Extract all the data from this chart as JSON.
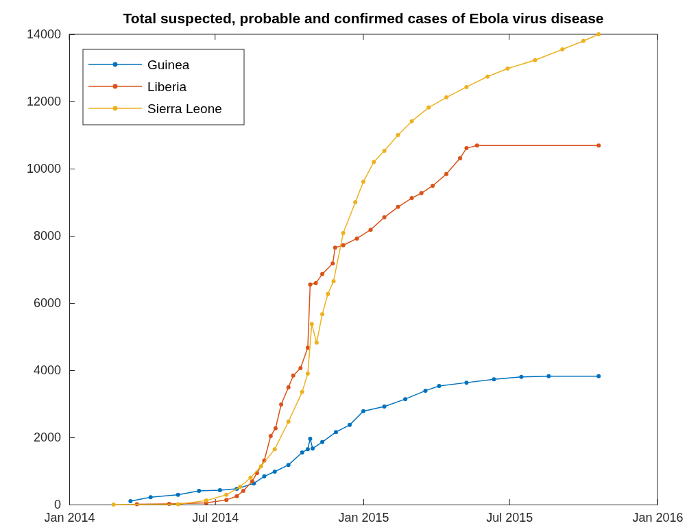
{
  "chart_data": {
    "type": "line",
    "title": "Total suspected, probable and confirmed cases of Ebola virus disease",
    "xlim": [
      "2014-01-01",
      "2016-01-01"
    ],
    "xticks": [
      {
        "value": "2014-01-01",
        "label": "Jan 2014"
      },
      {
        "value": "2014-07-01",
        "label": "Jul 2014"
      },
      {
        "value": "2015-01-01",
        "label": "Jan 2015"
      },
      {
        "value": "2015-07-01",
        "label": "Jul 2015"
      },
      {
        "value": "2016-01-01",
        "label": "Jan 2016"
      }
    ],
    "ylim": [
      0,
      14000
    ],
    "yticks": [
      0,
      2000,
      4000,
      6000,
      8000,
      10000,
      12000,
      14000
    ],
    "grid": false,
    "legend": "top left",
    "marker": "circle",
    "line_style": "solid",
    "series": [
      {
        "name": "Guinea",
        "color": "#0072bd",
        "x": [
          "2014-03-18",
          "2014-04-12",
          "2014-05-16",
          "2014-06-11",
          "2014-07-07",
          "2014-07-28",
          "2014-08-18",
          "2014-08-31",
          "2014-09-13",
          "2014-09-30",
          "2014-10-17",
          "2014-10-24",
          "2014-10-27",
          "2014-10-30",
          "2014-11-11",
          "2014-11-28",
          "2014-12-15",
          "2015-01-01",
          "2015-01-27",
          "2015-02-22",
          "2015-03-19",
          "2015-04-05",
          "2015-05-09",
          "2015-06-12",
          "2015-07-16",
          "2015-08-19",
          "2015-10-20"
        ],
        "values": [
          100,
          220,
          290,
          410,
          430,
          470,
          630,
          840,
          980,
          1180,
          1550,
          1650,
          1960,
          1670,
          1860,
          2160,
          2370,
          2780,
          2920,
          3140,
          3390,
          3530,
          3630,
          3730,
          3800,
          3820,
          3820
        ]
      },
      {
        "name": "Liberia",
        "color": "#d95319",
        "x": [
          "2014-03-26",
          "2014-05-05",
          "2014-06-20",
          "2014-07-15",
          "2014-07-28",
          "2014-08-05",
          "2014-08-16",
          "2014-08-22",
          "2014-08-31",
          "2014-09-08",
          "2014-09-14",
          "2014-09-21",
          "2014-09-30",
          "2014-10-06",
          "2014-10-15",
          "2014-10-24",
          "2014-10-27",
          "2014-11-03",
          "2014-11-11",
          "2014-11-24",
          "2014-11-27",
          "2014-12-07",
          "2014-12-24",
          "2015-01-10",
          "2015-01-27",
          "2015-02-13",
          "2015-03-02",
          "2015-03-14",
          "2015-03-28",
          "2015-04-14",
          "2015-05-01",
          "2015-05-09",
          "2015-05-22",
          "2015-10-20"
        ],
        "values": [
          10,
          20,
          50,
          140,
          250,
          410,
          690,
          940,
          1310,
          2040,
          2270,
          2980,
          3490,
          3840,
          4060,
          4670,
          6550,
          6590,
          6860,
          7180,
          7650,
          7720,
          7920,
          8180,
          8550,
          8860,
          9120,
          9270,
          9490,
          9840,
          10310,
          10610,
          10690,
          10690
        ]
      },
      {
        "name": "Sierra Leone",
        "color": "#edb120",
        "x": [
          "2014-02-25",
          "2014-05-16",
          "2014-06-20",
          "2014-07-15",
          "2014-08-01",
          "2014-08-14",
          "2014-08-27",
          "2014-09-13",
          "2014-09-30",
          "2014-10-17",
          "2014-10-24",
          "2014-10-29",
          "2014-11-04",
          "2014-11-11",
          "2014-11-18",
          "2014-11-25",
          "2014-12-07",
          "2014-12-22",
          "2015-01-01",
          "2015-01-14",
          "2015-01-27",
          "2015-02-13",
          "2015-03-02",
          "2015-03-23",
          "2015-04-14",
          "2015-05-09",
          "2015-06-04",
          "2015-06-29",
          "2015-08-02",
          "2015-09-05",
          "2015-10-01",
          "2015-10-20"
        ],
        "values": [
          0,
          10,
          120,
          290,
          530,
          800,
          1140,
          1650,
          2470,
          3350,
          3900,
          5370,
          4820,
          5670,
          6270,
          6650,
          8080,
          9000,
          9610,
          10200,
          10530,
          11000,
          11410,
          11820,
          12120,
          12430,
          12740,
          12980,
          13230,
          13550,
          13800,
          14000
        ]
      }
    ]
  }
}
